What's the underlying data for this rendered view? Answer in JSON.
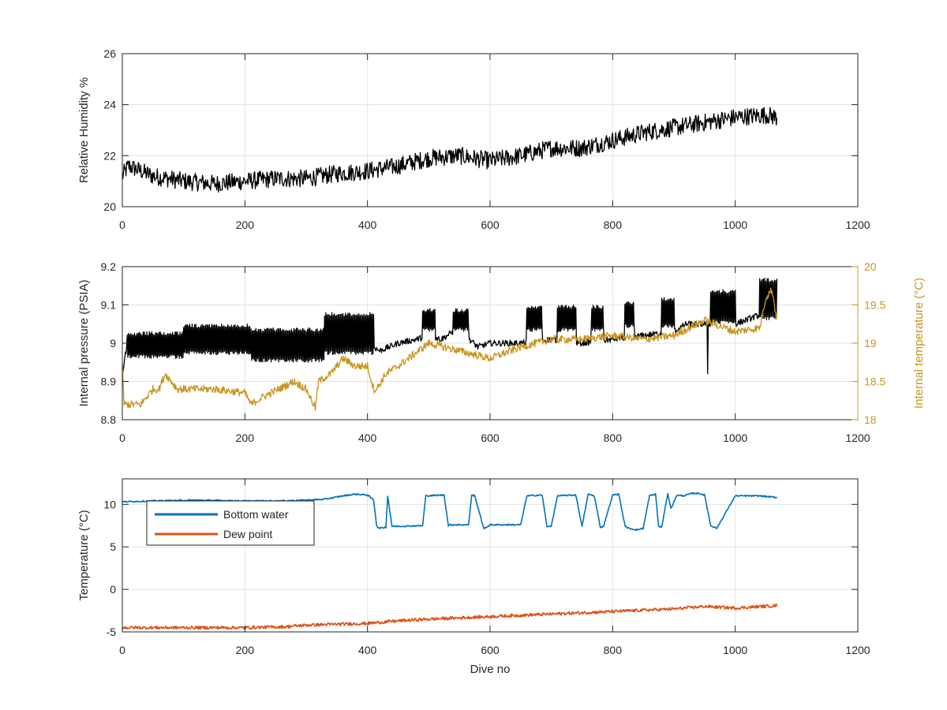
{
  "chart_data": [
    {
      "type": "line",
      "xlim": [
        0,
        1200
      ],
      "ylim": [
        20,
        26
      ],
      "xticks": [
        0,
        200,
        400,
        600,
        800,
        1000,
        1200
      ],
      "yticks": [
        20,
        22,
        24,
        26
      ],
      "xtick_labels": [
        "0",
        "200",
        "400",
        "600",
        "800",
        "1000",
        "1200"
      ],
      "ytick_labels": [
        "20",
        "22",
        "24",
        "26"
      ],
      "ylabel": "Relative Humidity %",
      "xlabel": "",
      "grid": true,
      "series": [
        {
          "color": "#000000",
          "noise": 0.35,
          "x": [
            0,
            10,
            50,
            100,
            150,
            200,
            250,
            300,
            350,
            400,
            450,
            500,
            550,
            600,
            650,
            700,
            750,
            800,
            850,
            900,
            950,
            1000,
            1050,
            1068
          ],
          "y": [
            21.2,
            21.6,
            21.2,
            21.0,
            20.9,
            21.0,
            21.1,
            21.1,
            21.3,
            21.4,
            21.6,
            21.9,
            22.0,
            21.8,
            22.0,
            22.3,
            22.3,
            22.6,
            22.9,
            23.1,
            23.3,
            23.5,
            23.6,
            23.5
          ]
        }
      ]
    },
    {
      "type": "line",
      "xlim": [
        0,
        1200
      ],
      "ylim": [
        8.8,
        9.2
      ],
      "y2lim": [
        18,
        20
      ],
      "xticks": [
        0,
        200,
        400,
        600,
        800,
        1000,
        1200
      ],
      "yticks": [
        8.8,
        8.9,
        9.0,
        9.1,
        9.2
      ],
      "y2ticks": [
        18,
        18.5,
        19,
        19.5,
        20
      ],
      "xtick_labels": [
        "0",
        "200",
        "400",
        "600",
        "800",
        "1000",
        "1200"
      ],
      "ytick_labels": [
        "8.8",
        "8.9",
        "9",
        "9.1",
        "9.2"
      ],
      "y2tick_labels": [
        "18",
        "18.5",
        "19",
        "19.5",
        "20"
      ],
      "ylabel": "Internal pressure (PSIA)",
      "y2label": "Internal temperature (°C)",
      "xlabel": "",
      "grid": true,
      "axis2_color": "#c8951e",
      "series": [
        {
          "axis": "left",
          "color": "#000000",
          "x": [
            0,
            5,
            10,
            60,
            100,
            200,
            250,
            300,
            320,
            330,
            340,
            405,
            410,
            420,
            450,
            480,
            500,
            520,
            540,
            560,
            580,
            600,
            650,
            700,
            750,
            800,
            850,
            900,
            920,
            950,
            1000,
            1050,
            1068
          ],
          "y": [
            8.92,
            8.97,
            9.0,
            9.02,
            9.02,
            9.02,
            9.02,
            9.0,
            8.99,
            9.03,
            9.05,
            9.05,
            8.99,
            8.98,
            9.0,
            9.01,
            9.02,
            9.01,
            9.03,
            9.02,
            8.99,
            9.0,
            9.0,
            9.01,
            9.0,
            9.01,
            9.02,
            9.03,
            9.05,
            9.05,
            9.05,
            9.08,
            9.07
          ],
          "noise": 0.008,
          "bursts": [
            {
              "x0": 8,
              "x1": 100,
              "lo": 8.96,
              "hi": 9.03
            },
            {
              "x0": 100,
              "x1": 210,
              "lo": 8.97,
              "hi": 9.05
            },
            {
              "x0": 210,
              "x1": 330,
              "lo": 8.95,
              "hi": 9.04
            },
            {
              "x0": 330,
              "x1": 410,
              "lo": 8.97,
              "hi": 9.08
            },
            {
              "x0": 490,
              "x1": 510,
              "lo": 9.03,
              "hi": 9.09
            },
            {
              "x0": 540,
              "x1": 565,
              "lo": 9.03,
              "hi": 9.09
            },
            {
              "x0": 660,
              "x1": 685,
              "lo": 9.03,
              "hi": 9.1
            },
            {
              "x0": 710,
              "x1": 740,
              "lo": 9.03,
              "hi": 9.1
            },
            {
              "x0": 765,
              "x1": 785,
              "lo": 9.03,
              "hi": 9.1
            },
            {
              "x0": 820,
              "x1": 835,
              "lo": 9.04,
              "hi": 9.11
            },
            {
              "x0": 880,
              "x1": 900,
              "lo": 9.04,
              "hi": 9.12
            },
            {
              "x0": 960,
              "x1": 1000,
              "lo": 9.05,
              "hi": 9.14
            },
            {
              "x0": 1040,
              "x1": 1068,
              "lo": 9.06,
              "hi": 9.17
            }
          ],
          "spikes": [
            {
              "x": 955,
              "y": 8.92
            }
          ]
        },
        {
          "axis": "right",
          "color": "#c8951e",
          "x": [
            0,
            3,
            10,
            30,
            50,
            60,
            70,
            90,
            110,
            150,
            200,
            210,
            230,
            280,
            300,
            315,
            320,
            340,
            360,
            380,
            400,
            410,
            415,
            430,
            450,
            500,
            550,
            600,
            650,
            700,
            750,
            800,
            850,
            900,
            950,
            1000,
            1040,
            1050,
            1060,
            1068
          ],
          "y": [
            18.7,
            18.2,
            18.2,
            18.2,
            18.4,
            18.4,
            18.6,
            18.4,
            18.4,
            18.4,
            18.35,
            18.2,
            18.3,
            18.5,
            18.4,
            18.15,
            18.5,
            18.6,
            18.8,
            18.7,
            18.7,
            18.4,
            18.4,
            18.6,
            18.7,
            19.0,
            18.9,
            18.8,
            18.95,
            19.05,
            19.05,
            19.1,
            19.05,
            19.1,
            19.3,
            19.15,
            19.2,
            19.6,
            19.7,
            19.3
          ],
          "noise": 0.05
        }
      ]
    },
    {
      "type": "line",
      "xlim": [
        0,
        1200
      ],
      "ylim": [
        -5,
        13
      ],
      "xticks": [
        0,
        200,
        400,
        600,
        800,
        1000,
        1200
      ],
      "yticks": [
        -5,
        0,
        5,
        10
      ],
      "xtick_labels": [
        "0",
        "200",
        "400",
        "600",
        "800",
        "1000",
        "1200"
      ],
      "ytick_labels": [
        "-5",
        "0",
        "5",
        "10"
      ],
      "ylabel": "Temperature (°C)",
      "xlabel": "Dive no",
      "grid": true,
      "legend": {
        "placement": "top-left",
        "entries": [
          "Bottom water",
          "Dew point"
        ]
      },
      "series": [
        {
          "name": "Bottom water",
          "color": "#0072bd",
          "noise": 0.08,
          "x": [
            0,
            50,
            120,
            200,
            250,
            300,
            330,
            360,
            380,
            400,
            410,
            415,
            418,
            430,
            433,
            440,
            490,
            495,
            525,
            532,
            535,
            565,
            570,
            575,
            590,
            600,
            650,
            660,
            685,
            693,
            700,
            710,
            740,
            750,
            760,
            770,
            780,
            785,
            800,
            810,
            820,
            825,
            840,
            850,
            860,
            870,
            875,
            880,
            890,
            895,
            905,
            915,
            930,
            940,
            950,
            960,
            970,
            1000,
            1040,
            1068
          ],
          "y": [
            10.3,
            10.4,
            10.5,
            10.4,
            10.4,
            10.5,
            10.6,
            11.0,
            11.2,
            11.1,
            10.5,
            7.5,
            7.2,
            7.3,
            11.0,
            7.4,
            7.5,
            11.0,
            11.1,
            7.5,
            7.6,
            7.6,
            11.1,
            11.0,
            7.1,
            7.6,
            7.6,
            11.0,
            11.1,
            7.3,
            7.5,
            11.0,
            11.1,
            7.4,
            11.2,
            11.0,
            7.3,
            7.4,
            11.1,
            11.2,
            7.5,
            7.2,
            7.0,
            7.2,
            11.0,
            11.2,
            7.4,
            7.3,
            11.3,
            9.5,
            11.1,
            11.0,
            11.3,
            11.3,
            11.1,
            7.5,
            7.2,
            11.0,
            11.0,
            10.8
          ]
        },
        {
          "name": "Dew point",
          "color": "#d95319",
          "noise": 0.18,
          "x": [
            0,
            100,
            200,
            265,
            300,
            400,
            450,
            500,
            600,
            700,
            800,
            900,
            950,
            1000,
            1068
          ],
          "y": [
            -4.5,
            -4.5,
            -4.5,
            -4.4,
            -4.2,
            -4.0,
            -3.7,
            -3.5,
            -3.2,
            -2.9,
            -2.6,
            -2.3,
            -2.0,
            -2.2,
            -1.9
          ]
        }
      ]
    }
  ]
}
